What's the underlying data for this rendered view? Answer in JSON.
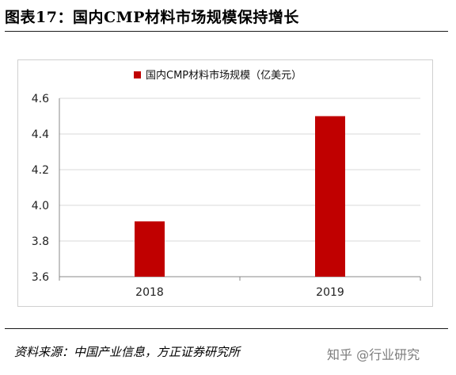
{
  "header": {
    "title": "图表17：国内CMP材料市场规模保持增长"
  },
  "footer": {
    "source": "资料来源：中国产业信息，方正证券研究所",
    "watermark": "知乎 @行业研究"
  },
  "colors": {
    "bar": "#c00000",
    "axis": "#888888",
    "grid": "#d9d9d9"
  },
  "chart_data": {
    "type": "bar",
    "title": "",
    "categories": [
      "2018",
      "2019"
    ],
    "series": [
      {
        "name": "国内CMP材料市场规模（亿美元）",
        "values": [
          3.91,
          4.5
        ]
      }
    ],
    "ylim": [
      3.6,
      4.6
    ],
    "yticks": [
      "3.6",
      "3.8",
      "4.0",
      "4.2",
      "4.4",
      "4.6"
    ],
    "xlabel": "",
    "ylabel": "",
    "grid": true,
    "legend": "top-center"
  }
}
